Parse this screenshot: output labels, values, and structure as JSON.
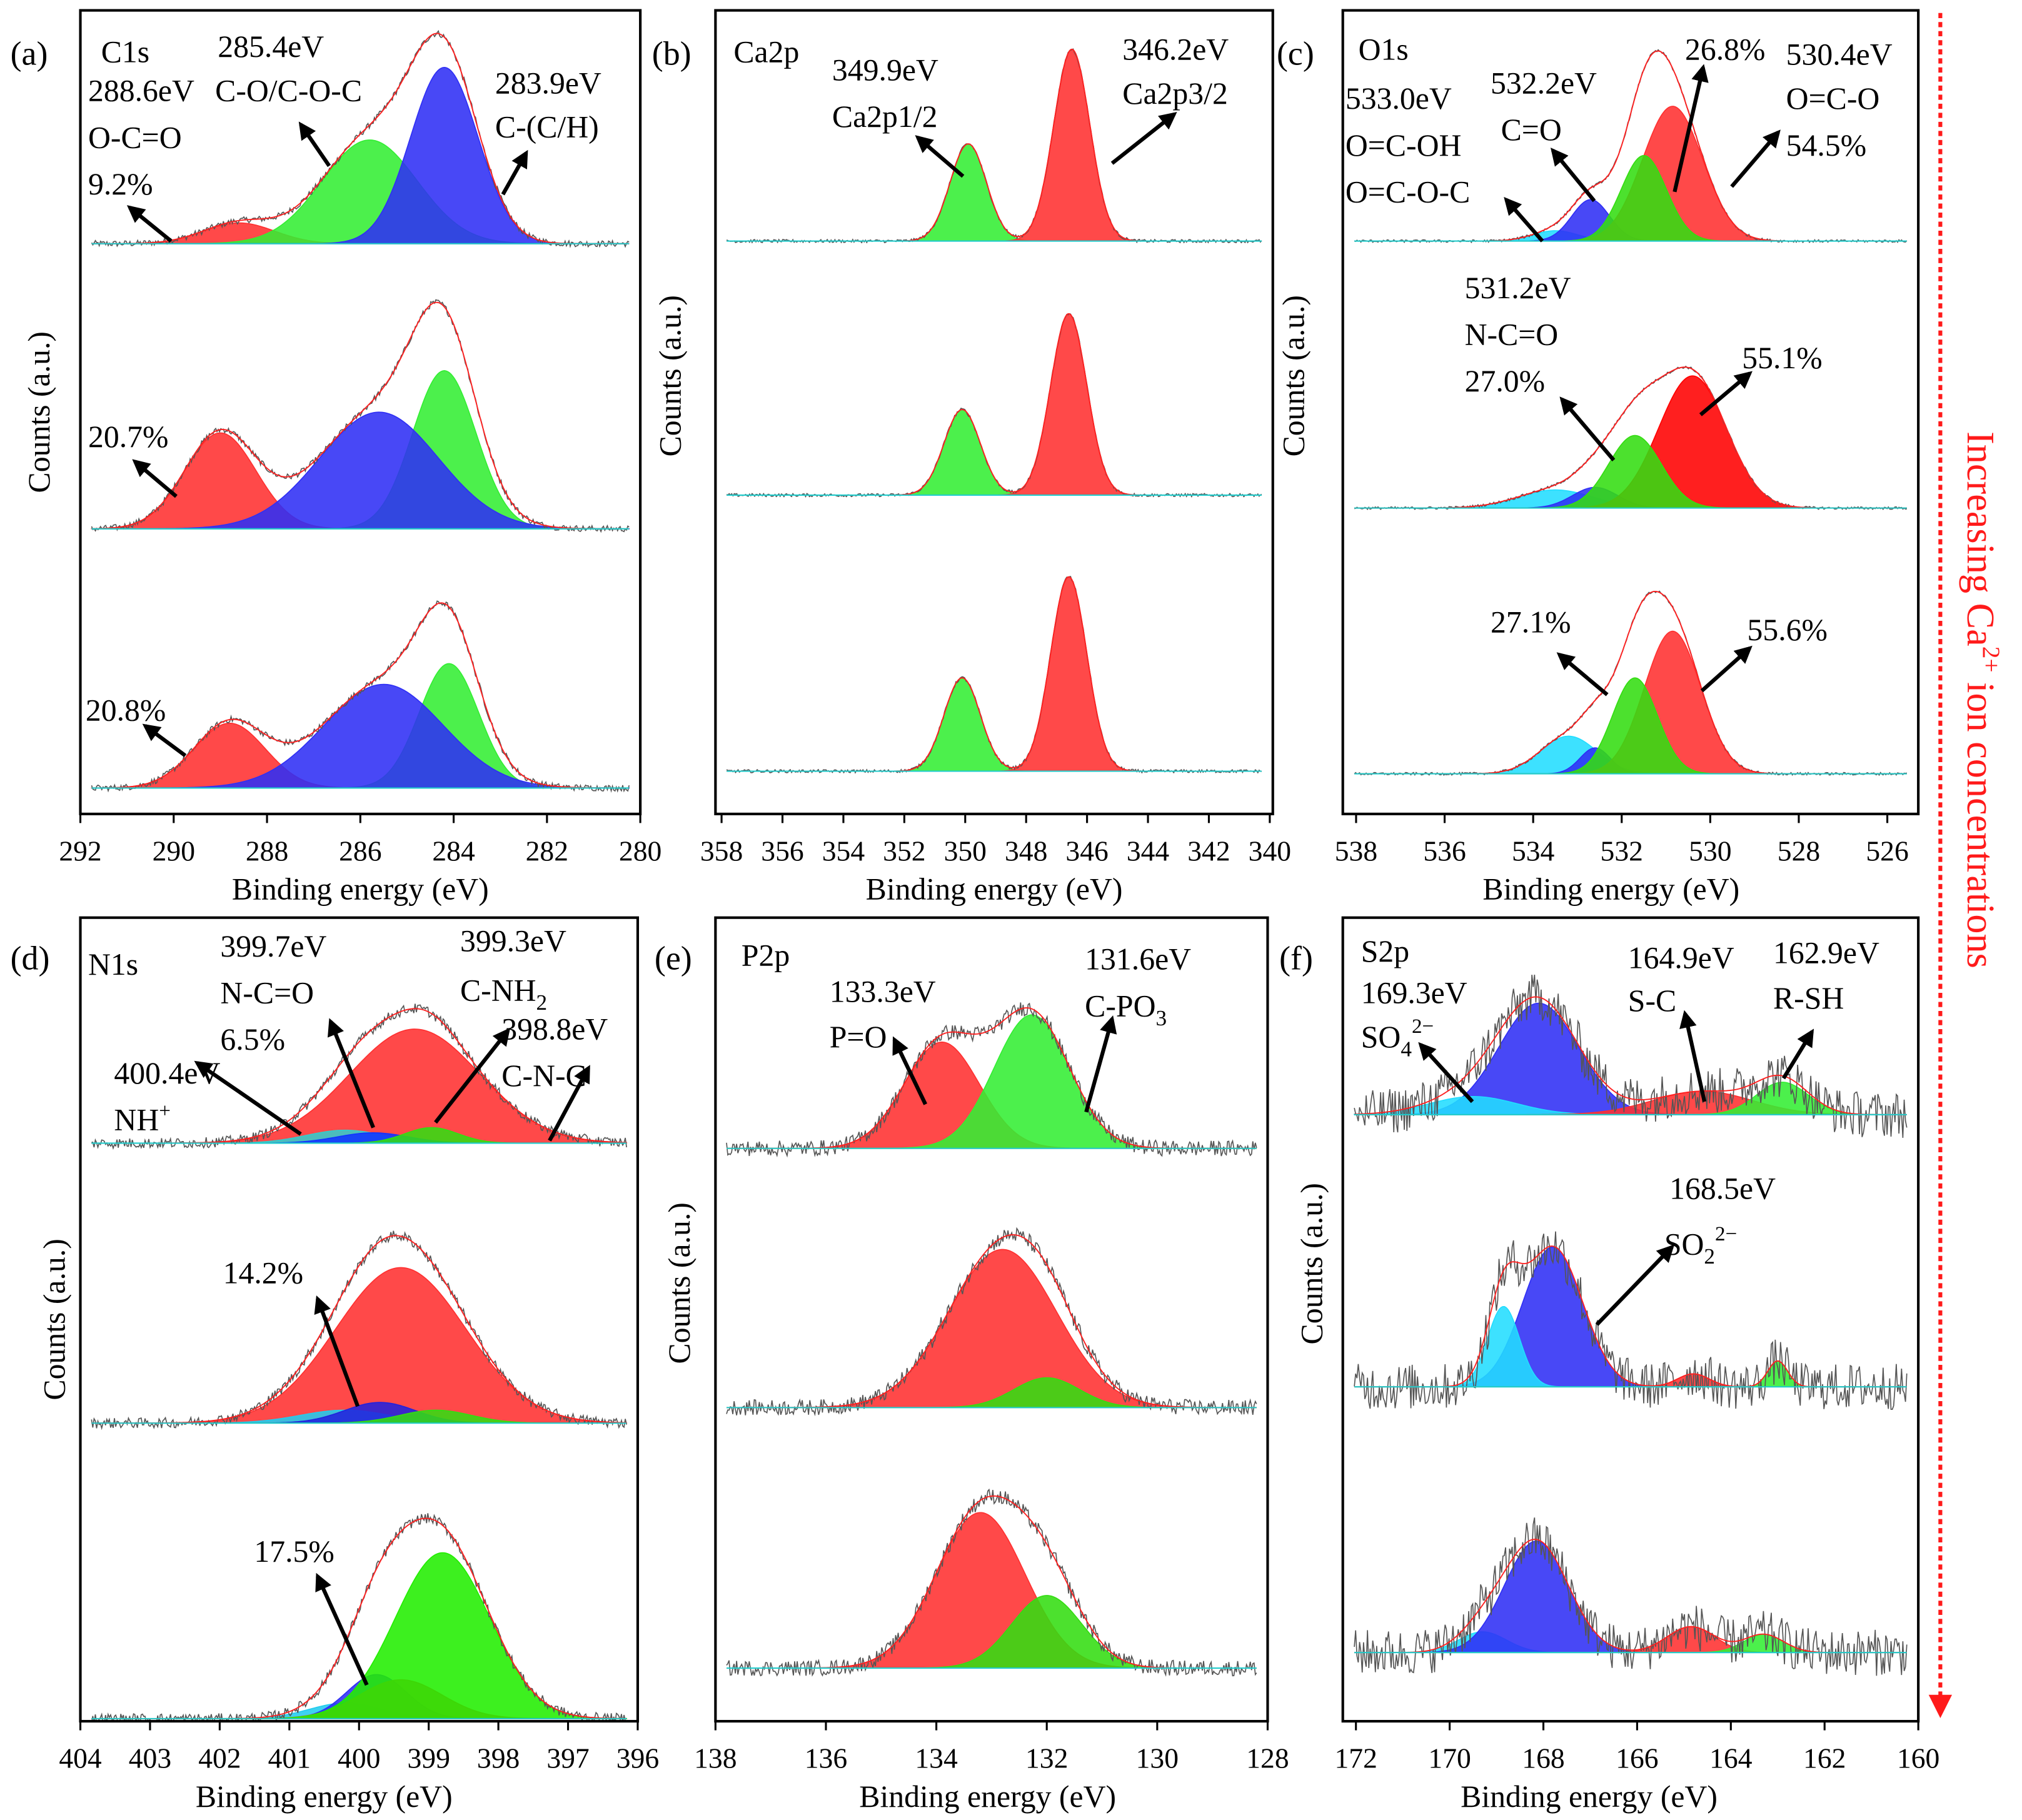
{
  "figure": {
    "side_label": {
      "text": "Increasing Ca",
      "sup": "2+",
      "rest": " ion concentrations"
    },
    "colors": {
      "red": "#ff3030",
      "green": "#33ee33",
      "blue": "#2f2ff5",
      "cyan": "#22ddff",
      "envelope": "#ff2020",
      "raw": "#555555",
      "side": "#ff1a1a"
    }
  },
  "chart_data": [
    {
      "type": "area",
      "panel": "(a)",
      "title": "C1s",
      "xlabel": "Binding energy (eV)",
      "ylabel": "Counts (a.u.)",
      "xlim": [
        292,
        280
      ],
      "ylim": [
        -0.1,
        3.0
      ],
      "xticks": [
        292,
        290,
        288,
        286,
        284,
        282,
        280
      ],
      "xtick_labels": [
        "292",
        "290",
        "288",
        "286",
        "284",
        "282",
        "280"
      ],
      "spectra": [
        {
          "offset": 2.1,
          "noise": 0.012,
          "peaks": [
            {
              "center": 288.6,
              "height": 0.08,
              "fwhm": 1.8,
              "color": "#ff3030"
            },
            {
              "center": 285.8,
              "height": 0.4,
              "fwhm": 2.4,
              "color": "#33ee33"
            },
            {
              "center": 284.2,
              "height": 0.68,
              "fwhm": 1.7,
              "color": "#2f2ff5"
            }
          ]
        },
        {
          "offset": 1.0,
          "noise": 0.012,
          "peaks": [
            {
              "center": 289.0,
              "height": 0.37,
              "fwhm": 1.8,
              "color": "#ff3030"
            },
            {
              "center": 284.2,
              "height": 0.61,
              "fwhm": 1.6,
              "color": "#33ee33"
            },
            {
              "center": 285.6,
              "height": 0.45,
              "fwhm": 3.0,
              "color": "#2f2ff5"
            }
          ]
        },
        {
          "offset": 0.0,
          "noise": 0.012,
          "peaks": [
            {
              "center": 288.8,
              "height": 0.25,
              "fwhm": 1.8,
              "color": "#ff3030"
            },
            {
              "center": 284.1,
              "height": 0.48,
              "fwhm": 1.5,
              "color": "#33ee33"
            },
            {
              "center": 285.5,
              "height": 0.4,
              "fwhm": 3.0,
              "color": "#2f2ff5"
            }
          ]
        }
      ],
      "labels": {
        "core": "C1s",
        "e1": "285.4eV",
        "b1": "C-O/C-O-C",
        "e2": "288.6eV",
        "b2": "O-C=O",
        "p_top": "9.2%",
        "e3": "283.9eV",
        "b3": "C-(C/H)",
        "p_mid": "20.7%",
        "p_bot": "20.8%"
      }
    },
    {
      "type": "area",
      "panel": "(b)",
      "title": "Ca2p",
      "xlabel": "Binding energy (eV)",
      "ylabel": "Counts (a.u.)",
      "xlim": [
        358.2,
        339.9
      ],
      "ylim": [
        -0.1,
        3.0
      ],
      "xticks": [
        358,
        356,
        354,
        352,
        350,
        348,
        346,
        344,
        342,
        340
      ],
      "xtick_labels": [
        "358",
        "356",
        "354",
        "352",
        "350",
        "348",
        "346",
        "344",
        "342",
        "340"
      ],
      "spectra": [
        {
          "offset": 2.11,
          "noise": 0.006,
          "peaks": [
            {
              "center": 349.9,
              "height": 0.375,
              "fwhm": 1.4,
              "color": "#33ee33"
            },
            {
              "center": 346.5,
              "height": 0.74,
              "fwhm": 1.4,
              "color": "#ff3030"
            }
          ]
        },
        {
          "offset": 1.13,
          "noise": 0.006,
          "peaks": [
            {
              "center": 350.1,
              "height": 0.33,
              "fwhm": 1.4,
              "color": "#33ee33"
            },
            {
              "center": 346.6,
              "height": 0.7,
              "fwhm": 1.4,
              "color": "#ff3030"
            }
          ]
        },
        {
          "offset": 0.065,
          "noise": 0.006,
          "peaks": [
            {
              "center": 350.1,
              "height": 0.36,
              "fwhm": 1.4,
              "color": "#33ee33"
            },
            {
              "center": 346.6,
              "height": 0.75,
              "fwhm": 1.4,
              "color": "#ff3030"
            }
          ]
        }
      ],
      "labels": {
        "core": "Ca2p",
        "e1": "349.9eV",
        "b1": "Ca2p1/2",
        "e2": "346.2eV",
        "b2": "Ca2p3/2"
      }
    },
    {
      "type": "area",
      "panel": "(c)",
      "title": "O1s",
      "xlabel": "Binding energy (eV)",
      "ylabel": "Counts (a.u.)",
      "xlim": [
        538.3,
        525.3
      ],
      "ylim": [
        -0.1,
        3.0
      ],
      "xticks": [
        538,
        536,
        534,
        532,
        530,
        528,
        526
      ],
      "xtick_labels": [
        "538",
        "536",
        "534",
        "532",
        "530",
        "528",
        "526"
      ],
      "spectra": [
        {
          "offset": 2.11,
          "noise": 0.005,
          "peaks": [
            {
              "center": 533.5,
              "height": 0.04,
              "fwhm": 1.2,
              "color": "#22ddff"
            },
            {
              "center": 532.7,
              "height": 0.16,
              "fwhm": 1.0,
              "color": "#2f2ff5"
            },
            {
              "center": 530.85,
              "height": 0.52,
              "fwhm": 1.6,
              "color": "#ff3030"
            },
            {
              "center": 531.5,
              "height": 0.33,
              "fwhm": 1.2,
              "color": "#33dd11"
            }
          ]
        },
        {
          "offset": 1.08,
          "noise": 0.005,
          "peaks": [
            {
              "center": 533.5,
              "height": 0.07,
              "fwhm": 2.0,
              "color": "#22ddff"
            },
            {
              "center": 532.6,
              "height": 0.08,
              "fwhm": 1.2,
              "color": "#2f2ff5"
            },
            {
              "center": 530.4,
              "height": 0.51,
              "fwhm": 1.8,
              "color": "#ff0000"
            },
            {
              "center": 531.7,
              "height": 0.28,
              "fwhm": 1.4,
              "color": "#33dd11"
            }
          ]
        },
        {
          "offset": 0.055,
          "noise": 0.005,
          "peaks": [
            {
              "center": 533.2,
              "height": 0.145,
              "fwhm": 1.5,
              "color": "#22ddff"
            },
            {
              "center": 532.6,
              "height": 0.1,
              "fwhm": 0.8,
              "color": "#2f2ff5"
            },
            {
              "center": 530.85,
              "height": 0.55,
              "fwhm": 1.5,
              "color": "#ff3030"
            },
            {
              "center": 531.7,
              "height": 0.37,
              "fwhm": 1.2,
              "color": "#33dd11"
            }
          ]
        }
      ],
      "labels": {
        "core": "O1s",
        "e1": "533.0eV",
        "b1a": "O=C-OH",
        "b1b": "O=C-O-C",
        "e2": "532.2eV",
        "b2": "C=O",
        "p1": "26.8%",
        "e3": "530.4eV",
        "b3": "O=C-O",
        "p2": "54.5%",
        "e4": "531.2eV",
        "b4": "N-C=O",
        "p3": "27.0%",
        "p4": "55.1%",
        "p5": "27.1%",
        "p6": "55.6%"
      }
    },
    {
      "type": "area",
      "panel": "(d)",
      "title": "N1s",
      "xlabel": "Binding energy (eV)",
      "ylabel": "Counts (a.u.)",
      "xlim": [
        404,
        396
      ],
      "ylim": [
        -0.1,
        3.0
      ],
      "xticks": [
        404,
        403,
        402,
        401,
        400,
        399,
        398,
        397,
        396
      ],
      "xtick_labels": [
        "404",
        "403",
        "402",
        "401",
        "400",
        "399",
        "398",
        "397",
        "396"
      ],
      "spectra": [
        {
          "offset": 2.13,
          "noise": 0.02,
          "peaks": [
            {
              "center": 399.2,
              "height": 0.44,
              "fwhm": 2.2,
              "color": "#ff3030"
            },
            {
              "center": 400.2,
              "height": 0.05,
              "fwhm": 1.3,
              "color": "#33cccc"
            },
            {
              "center": 399.8,
              "height": 0.04,
              "fwhm": 1.2,
              "color": "#1133ff"
            },
            {
              "center": 398.96,
              "height": 0.06,
              "fwhm": 0.9,
              "color": "#33dd11"
            }
          ]
        },
        {
          "offset": 1.05,
          "noise": 0.02,
          "peaks": [
            {
              "center": 399.4,
              "height": 0.6,
              "fwhm": 2.2,
              "color": "#ff3030"
            },
            {
              "center": 400.2,
              "height": 0.05,
              "fwhm": 1.5,
              "color": "#22ccee"
            },
            {
              "center": 399.7,
              "height": 0.08,
              "fwhm": 1.2,
              "color": "#2222dd"
            },
            {
              "center": 398.9,
              "height": 0.05,
              "fwhm": 1.2,
              "color": "#33dd11"
            }
          ]
        },
        {
          "offset": -0.09,
          "noise": 0.02,
          "peaks": [
            {
              "center": 400.2,
              "height": 0.06,
              "fwhm": 1.2,
              "color": "#22ccee"
            },
            {
              "center": 399.75,
              "height": 0.17,
              "fwhm": 1.0,
              "color": "#2f2ff5"
            },
            {
              "center": 399.4,
              "height": 0.15,
              "fwhm": 1.4,
              "color": "#ff3030"
            },
            {
              "center": 398.8,
              "height": 0.64,
              "fwhm": 1.6,
              "color": "#22ee00"
            }
          ]
        }
      ],
      "labels": {
        "core": "N1s",
        "e1": "399.7eV",
        "b1": "N-C=O",
        "p1": "6.5%",
        "e2": "399.3eV",
        "b2": "C-NH",
        "b2_sub": "2",
        "e3": "398.8eV",
        "b3": "C-N-C",
        "e4": "400.4eV",
        "b4": "NH",
        "b4_sup": "+",
        "p2": "14.2%",
        "p3": "17.5%"
      }
    },
    {
      "type": "area",
      "panel": "(e)",
      "title": "P2p",
      "xlabel": "Binding energy (eV)",
      "ylabel": "Counts (a.u.)",
      "xlim": [
        138,
        128
      ],
      "ylim": [
        -0.1,
        3.0
      ],
      "xticks": [
        138,
        136,
        134,
        132,
        130,
        128
      ],
      "xtick_labels": [
        "138",
        "136",
        "134",
        "132",
        "130",
        "128"
      ],
      "spectra": [
        {
          "offset": 2.11,
          "noise": 0.03,
          "peaks": [
            {
              "center": 133.9,
              "height": 0.41,
              "fwhm": 1.6,
              "color": "#ff3030"
            },
            {
              "center": 132.27,
              "height": 0.515,
              "fwhm": 1.6,
              "color": "#33ee33"
            }
          ]
        },
        {
          "offset": 1.11,
          "noise": 0.03,
          "peaks": [
            {
              "center": 132.8,
              "height": 0.61,
              "fwhm": 2.3,
              "color": "#ff3030"
            },
            {
              "center": 132.0,
              "height": 0.115,
              "fwhm": 1.4,
              "color": "#33dd11"
            }
          ]
        },
        {
          "offset": 0.105,
          "noise": 0.03,
          "peaks": [
            {
              "center": 133.2,
              "height": 0.6,
              "fwhm": 1.9,
              "color": "#ff3030"
            },
            {
              "center": 132.0,
              "height": 0.28,
              "fwhm": 1.5,
              "color": "#33dd11"
            }
          ]
        }
      ],
      "labels": {
        "core": "P2p",
        "e1": "133.3eV",
        "b1": "P=O",
        "e2": "131.6eV",
        "b2": "C-PO",
        "b2_sub": "3"
      }
    },
    {
      "type": "area",
      "panel": "(f)",
      "title": "S2p",
      "xlabel": "Binding energy (eV)",
      "ylabel": "Counts (a.u.)",
      "xlim": [
        172.28,
        160
      ],
      "ylim": [
        -0.1,
        3.0
      ],
      "xticks": [
        172,
        170,
        168,
        166,
        164,
        162,
        160
      ],
      "xtick_labels": [
        "172",
        "170",
        "168",
        "166",
        "164",
        "162",
        "160"
      ],
      "spectra": [
        {
          "offset": 2.24,
          "noise": 0.09,
          "peaks": [
            {
              "center": 168.1,
              "height": 0.43,
              "fwhm": 2.0,
              "color": "#2f2ff5"
            },
            {
              "center": 169.5,
              "height": 0.07,
              "fwhm": 2.2,
              "color": "#22ddff"
            },
            {
              "center": 164.6,
              "height": 0.09,
              "fwhm": 2.5,
              "color": "#ff3030"
            },
            {
              "center": 162.9,
              "height": 0.125,
              "fwhm": 1.3,
              "color": "#33ee33"
            }
          ]
        },
        {
          "offset": 1.19,
          "noise": 0.09,
          "peaks": [
            {
              "center": 167.8,
              "height": 0.54,
              "fwhm": 1.5,
              "color": "#2f2ff5"
            },
            {
              "center": 168.85,
              "height": 0.31,
              "fwhm": 0.8,
              "color": "#22ddff"
            },
            {
              "center": 164.8,
              "height": 0.05,
              "fwhm": 0.8,
              "color": "#ff3030"
            },
            {
              "center": 163.0,
              "height": 0.1,
              "fwhm": 0.5,
              "color": "#33ee33"
            }
          ]
        },
        {
          "offset": 0.165,
          "noise": 0.09,
          "peaks": [
            {
              "center": 169.3,
              "height": 0.08,
              "fwhm": 1.2,
              "color": "#22ddff"
            },
            {
              "center": 168.15,
              "height": 0.43,
              "fwhm": 1.6,
              "color": "#2f2ff5"
            },
            {
              "center": 164.85,
              "height": 0.1,
              "fwhm": 1.2,
              "color": "#ff3030"
            },
            {
              "center": 163.3,
              "height": 0.07,
              "fwhm": 1.0,
              "color": "#33ee33"
            }
          ]
        }
      ],
      "labels": {
        "core": "S2p",
        "e1": "169.3eV",
        "b1": "SO",
        "b1_sub": "4",
        "b1_sup": "2−",
        "e2": "164.9eV",
        "b2": "S-C",
        "e3": "162.9eV",
        "b3": "R-SH",
        "e4": "168.5eV",
        "b4": "SO",
        "b4_sub": "2",
        "b4_sup": "2−"
      }
    }
  ]
}
